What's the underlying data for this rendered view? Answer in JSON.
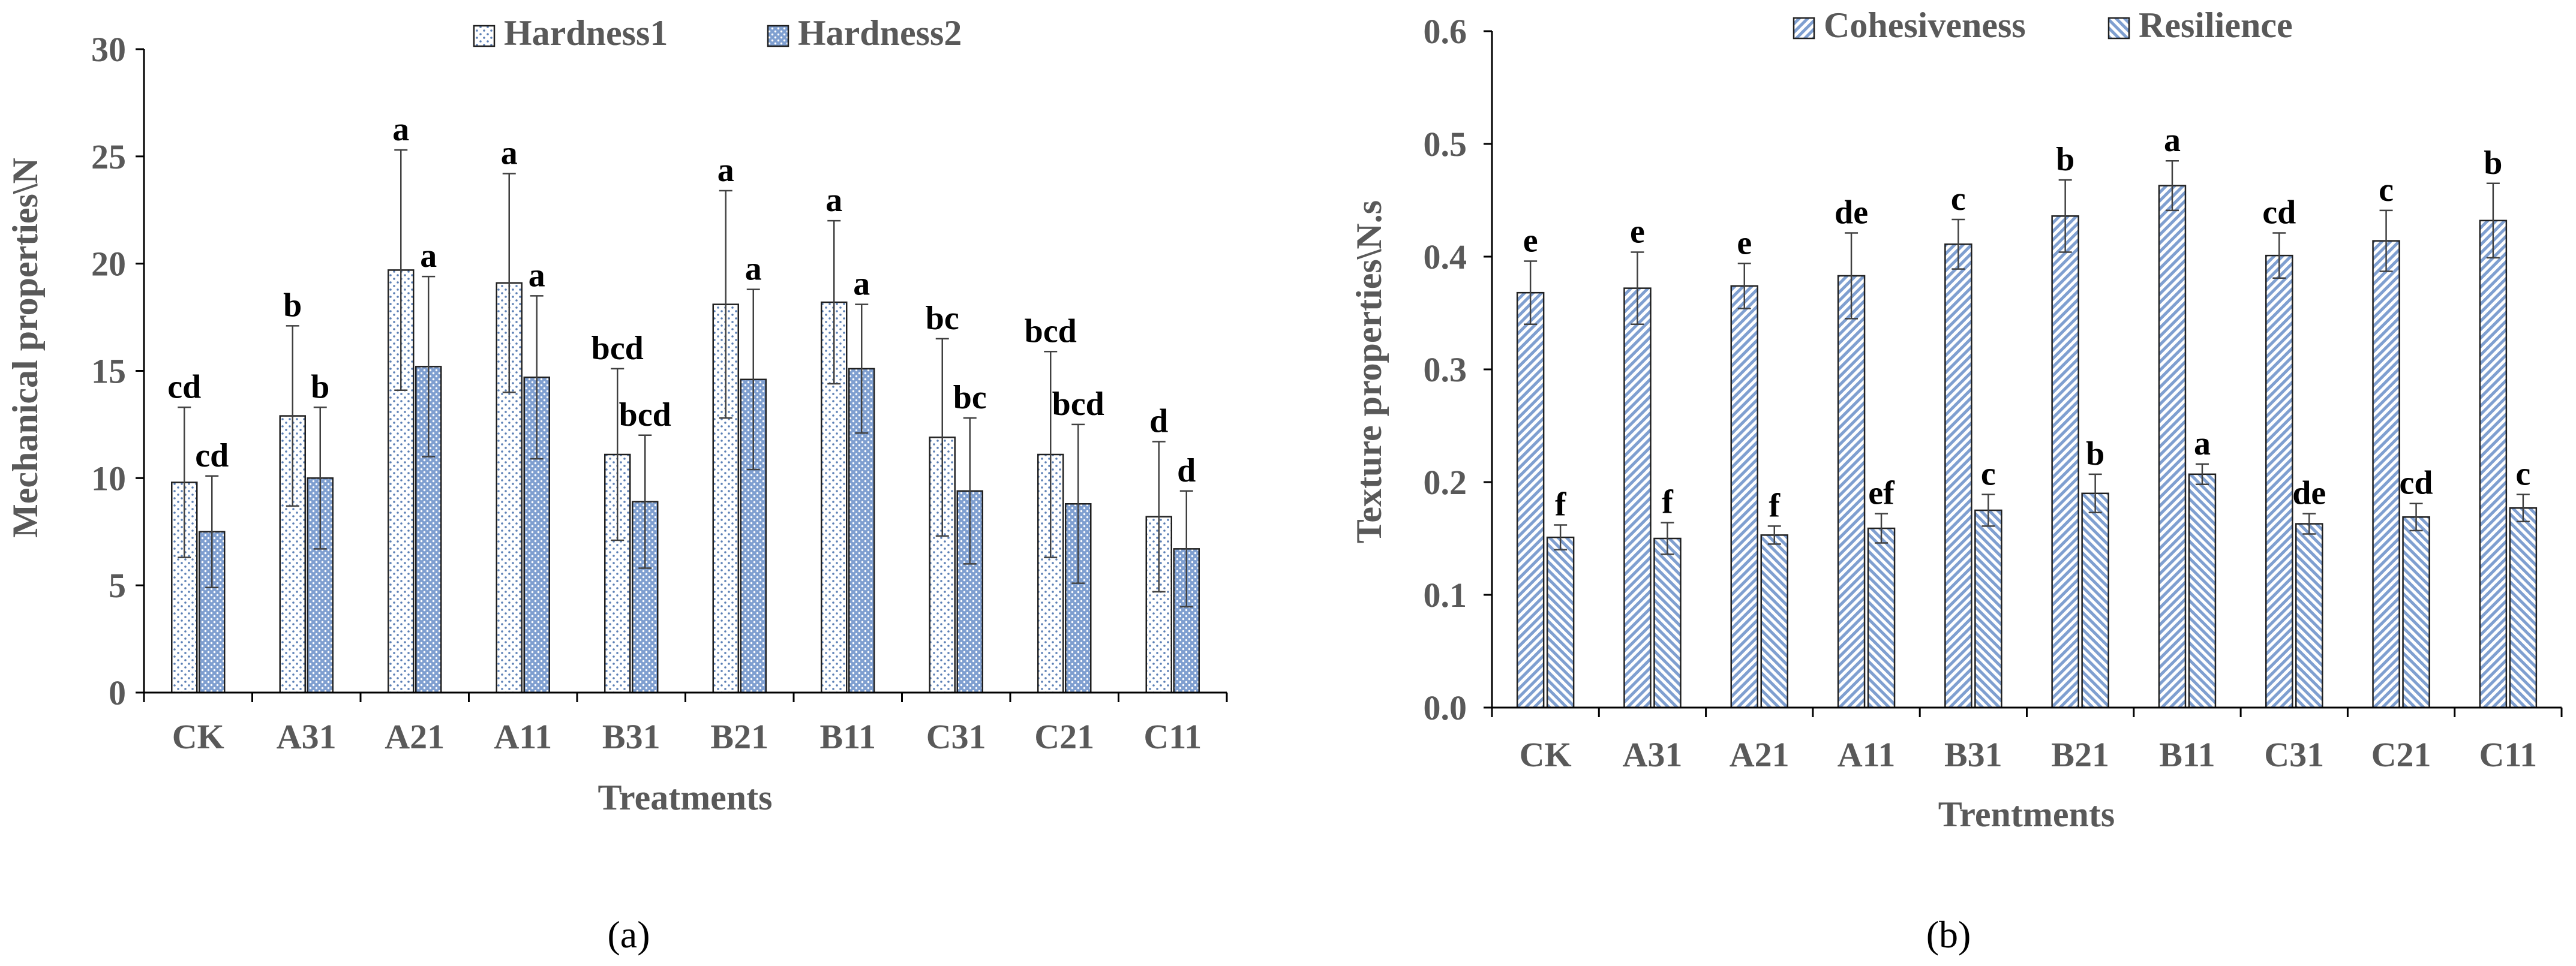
{
  "chart_data": [
    {
      "type": "bar",
      "panel_label": "(a)",
      "ylabel": "Mechanical properties\\N",
      "xlabel": "Treatments",
      "ylim": [
        0,
        30
      ],
      "yticks": [
        0,
        5,
        10,
        15,
        20,
        25,
        30
      ],
      "legend_position": "top-center",
      "categories": [
        "CK",
        "A31",
        "A21",
        "A11",
        "B31",
        "B21",
        "B11",
        "C31",
        "C21",
        "C11"
      ],
      "series": [
        {
          "name": "Hardness1",
          "values": [
            9.8,
            12.9,
            19.7,
            19.1,
            11.1,
            18.1,
            18.2,
            11.9,
            11.1,
            8.2
          ],
          "errors": [
            3.5,
            4.2,
            5.6,
            5.1,
            4.0,
            5.3,
            3.8,
            4.6,
            4.8,
            3.5
          ],
          "letters": [
            "cd",
            "b",
            "a",
            "a",
            "bcd",
            "a",
            "a",
            "bc",
            "bcd",
            "d"
          ],
          "pattern": "dots"
        },
        {
          "name": "Hardness2",
          "values": [
            7.5,
            10.0,
            15.2,
            14.7,
            8.9,
            14.6,
            15.1,
            9.4,
            8.8,
            6.7
          ],
          "errors": [
            2.6,
            3.3,
            4.2,
            3.8,
            3.1,
            4.2,
            3.0,
            3.4,
            3.7,
            2.7
          ],
          "letters": [
            "cd",
            "b",
            "a",
            "a",
            "bcd",
            "a",
            "a",
            "bc",
            "bcd",
            "d"
          ],
          "pattern": "cross"
        }
      ]
    },
    {
      "type": "bar",
      "panel_label": "(b)",
      "ylabel": "Texture  properties\\N.s",
      "xlabel": "Trentments",
      "ylim": [
        0,
        0.6
      ],
      "yticks": [
        0,
        0.1,
        0.2,
        0.3,
        0.4,
        0.5,
        0.6
      ],
      "legend_position": "top-center",
      "categories": [
        "CK",
        "A31",
        "A21",
        "A11",
        "B31",
        "B21",
        "B11",
        "C31",
        "C21",
        "C11"
      ],
      "series": [
        {
          "name": "Cohesiveness",
          "values": [
            0.368,
            0.372,
            0.374,
            0.383,
            0.411,
            0.436,
            0.463,
            0.401,
            0.414,
            0.432
          ],
          "errors": [
            0.028,
            0.032,
            0.02,
            0.038,
            0.022,
            0.032,
            0.022,
            0.02,
            0.027,
            0.033
          ],
          "letters": [
            "e",
            "e",
            "e",
            "de",
            "c",
            "b",
            "a",
            "cd",
            "c",
            "b"
          ],
          "pattern": "diag-right"
        },
        {
          "name": "Resilience",
          "values": [
            0.151,
            0.15,
            0.153,
            0.159,
            0.175,
            0.19,
            0.207,
            0.163,
            0.169,
            0.177
          ],
          "errors": [
            0.011,
            0.014,
            0.008,
            0.013,
            0.014,
            0.017,
            0.009,
            0.009,
            0.012,
            0.012
          ],
          "letters": [
            "f",
            "f",
            "f",
            "ef",
            "c",
            "b",
            "a",
            "de",
            "cd",
            "c"
          ],
          "pattern": "diag-left"
        }
      ]
    }
  ]
}
